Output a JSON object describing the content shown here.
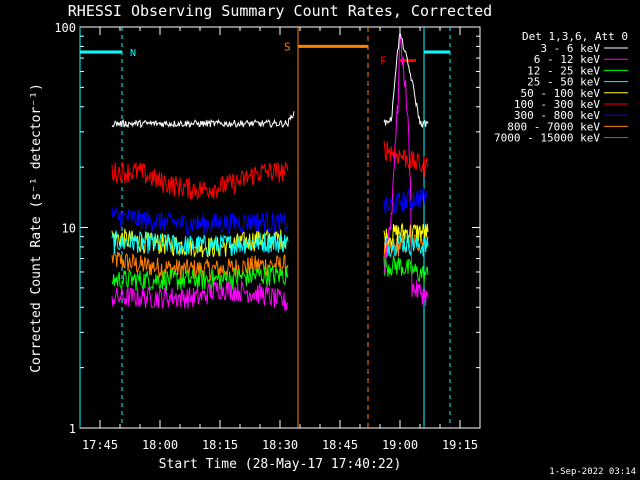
{
  "chart_data": {
    "type": "line",
    "title": "RHESSI Observing Summary Count Rates, Corrected",
    "xlabel": "Start Time (28-May-17 17:40:22)",
    "ylabel": "Corrected Count Rate (s⁻¹ detector⁻¹)",
    "y_scale": "log",
    "ylim": [
      1,
      100
    ],
    "y_ticks": [
      "1",
      "10",
      "100"
    ],
    "xlim": [
      "17:40",
      "19:20"
    ],
    "x_ticks": [
      "17:45",
      "18:00",
      "18:15",
      "18:30",
      "18:45",
      "19:00",
      "19:15"
    ],
    "legend_title": "Det 1,3,6, Att 0",
    "legend_placement": "right, outside plot",
    "series": [
      {
        "name": "3 - 6 keV",
        "color": "#ffffff",
        "x": [
          "17:48",
          "17:55",
          "18:05",
          "18:15",
          "18:25",
          "18:32",
          "18:33.5",
          "18:34",
          "18:56",
          "18:58",
          "19:00",
          "19:02",
          "19:04",
          "19:05",
          "19:07"
        ],
        "y": [
          33,
          33,
          33,
          33,
          33,
          33,
          38,
          null,
          33,
          35,
          92,
          65,
          42,
          33,
          33
        ]
      },
      {
        "name": "6 - 12 keV",
        "color": "#ff00ff",
        "x": [
          "17:48",
          "17:55",
          "18:05",
          "18:10",
          "18:15",
          "18:25",
          "18:32",
          "18:34",
          "18:56",
          "18:58",
          "18:59.5",
          "19:00",
          "19:01",
          "19:03",
          "19:05",
          "19:07"
        ],
        "y": [
          4.5,
          4.5,
          4.5,
          4.5,
          5.0,
          4.7,
          4.2,
          null,
          6,
          12,
          40,
          88,
          60,
          5.0,
          4.8,
          4.5
        ]
      },
      {
        "name": "12 - 25 keV",
        "color": "#00ff00",
        "x": [
          "17:48",
          "17:55",
          "18:05",
          "18:15",
          "18:25",
          "18:32",
          "18:34",
          "18:56",
          "19:00",
          "19:02",
          "19:04",
          "19:07"
        ],
        "y": [
          5.5,
          5.5,
          5.5,
          5.5,
          5.8,
          5.8,
          null,
          6.5,
          6.5,
          6.2,
          6.0,
          5.8
        ]
      },
      {
        "name": "25 - 50 keV",
        "color": "#00ffff",
        "x": [
          "17:48",
          "17:55",
          "18:05",
          "18:15",
          "18:25",
          "18:32",
          "18:34",
          "18:56",
          "19:00",
          "19:04",
          "19:07"
        ],
        "y": [
          8.5,
          8.5,
          8.2,
          8.2,
          8.5,
          8.5,
          null,
          8.0,
          8.5,
          8.2,
          8.0
        ]
      },
      {
        "name": "50 - 100 keV",
        "color": "#ffff00",
        "x": [
          "17:48",
          "17:55",
          "18:05",
          "18:15",
          "18:25",
          "18:32",
          "18:34",
          "18:56",
          "19:00",
          "19:04",
          "19:07"
        ],
        "y": [
          9.0,
          8.5,
          8.2,
          8.0,
          8.8,
          8.8,
          null,
          9.0,
          9.5,
          9.5,
          9.5
        ]
      },
      {
        "name": "100 - 300 keV",
        "color": "#ff0000",
        "x": [
          "17:48",
          "17:55",
          "18:00",
          "18:05",
          "18:10",
          "18:15",
          "18:20",
          "18:25",
          "18:32",
          "18:34",
          "18:56",
          "18:58",
          "19:00",
          "19:02",
          "19:04",
          "19:07"
        ],
        "y": [
          19,
          19,
          17,
          16,
          15.5,
          16,
          17,
          19,
          19,
          null,
          25,
          24,
          23,
          22,
          21,
          20
        ]
      },
      {
        "name": "300 - 800 keV",
        "color": "#0000ff",
        "x": [
          "17:48",
          "17:55",
          "18:05",
          "18:15",
          "18:25",
          "18:32",
          "18:34",
          "18:56",
          "19:00",
          "19:04",
          "19:07"
        ],
        "y": [
          11.5,
          11,
          10.5,
          10.5,
          10.8,
          10.5,
          null,
          12.5,
          13.5,
          14,
          14.5
        ]
      },
      {
        "name": "800 - 7000 keV",
        "color": "#ff8000",
        "x": [
          "17:48",
          "17:55",
          "18:05",
          "18:15",
          "18:25",
          "18:32",
          "18:34",
          "18:56",
          "19:00",
          "19:04",
          "19:07"
        ],
        "y": [
          7.0,
          6.5,
          6.2,
          6.2,
          6.5,
          6.5,
          null,
          7.5,
          8.2,
          8.5,
          9.0
        ]
      },
      {
        "name": "7000 - 15000 keV",
        "color": "#808000",
        "x": [],
        "y": []
      }
    ],
    "annotations": [
      {
        "label": "N",
        "color": "#00ffff",
        "type": "night",
        "x_start": "17:40",
        "x_end": "17:50.5",
        "dashed_x": [
          "17:50.5",
          "19:12.5"
        ],
        "solid_x": [
          "17:40",
          "19:06"
        ],
        "bar_right": "19:12.5"
      },
      {
        "label": "S",
        "color": "#ff8000",
        "type": "saa",
        "x_start": "18:34.5",
        "x_end": "18:52",
        "y": 80
      },
      {
        "label": "F",
        "color": "#ff0000",
        "type": "flare",
        "x_start": "19:00",
        "x_end": "19:04",
        "y": 68
      }
    ]
  },
  "footer": {
    "date_stamp": "1-Sep-2022 03:14"
  }
}
